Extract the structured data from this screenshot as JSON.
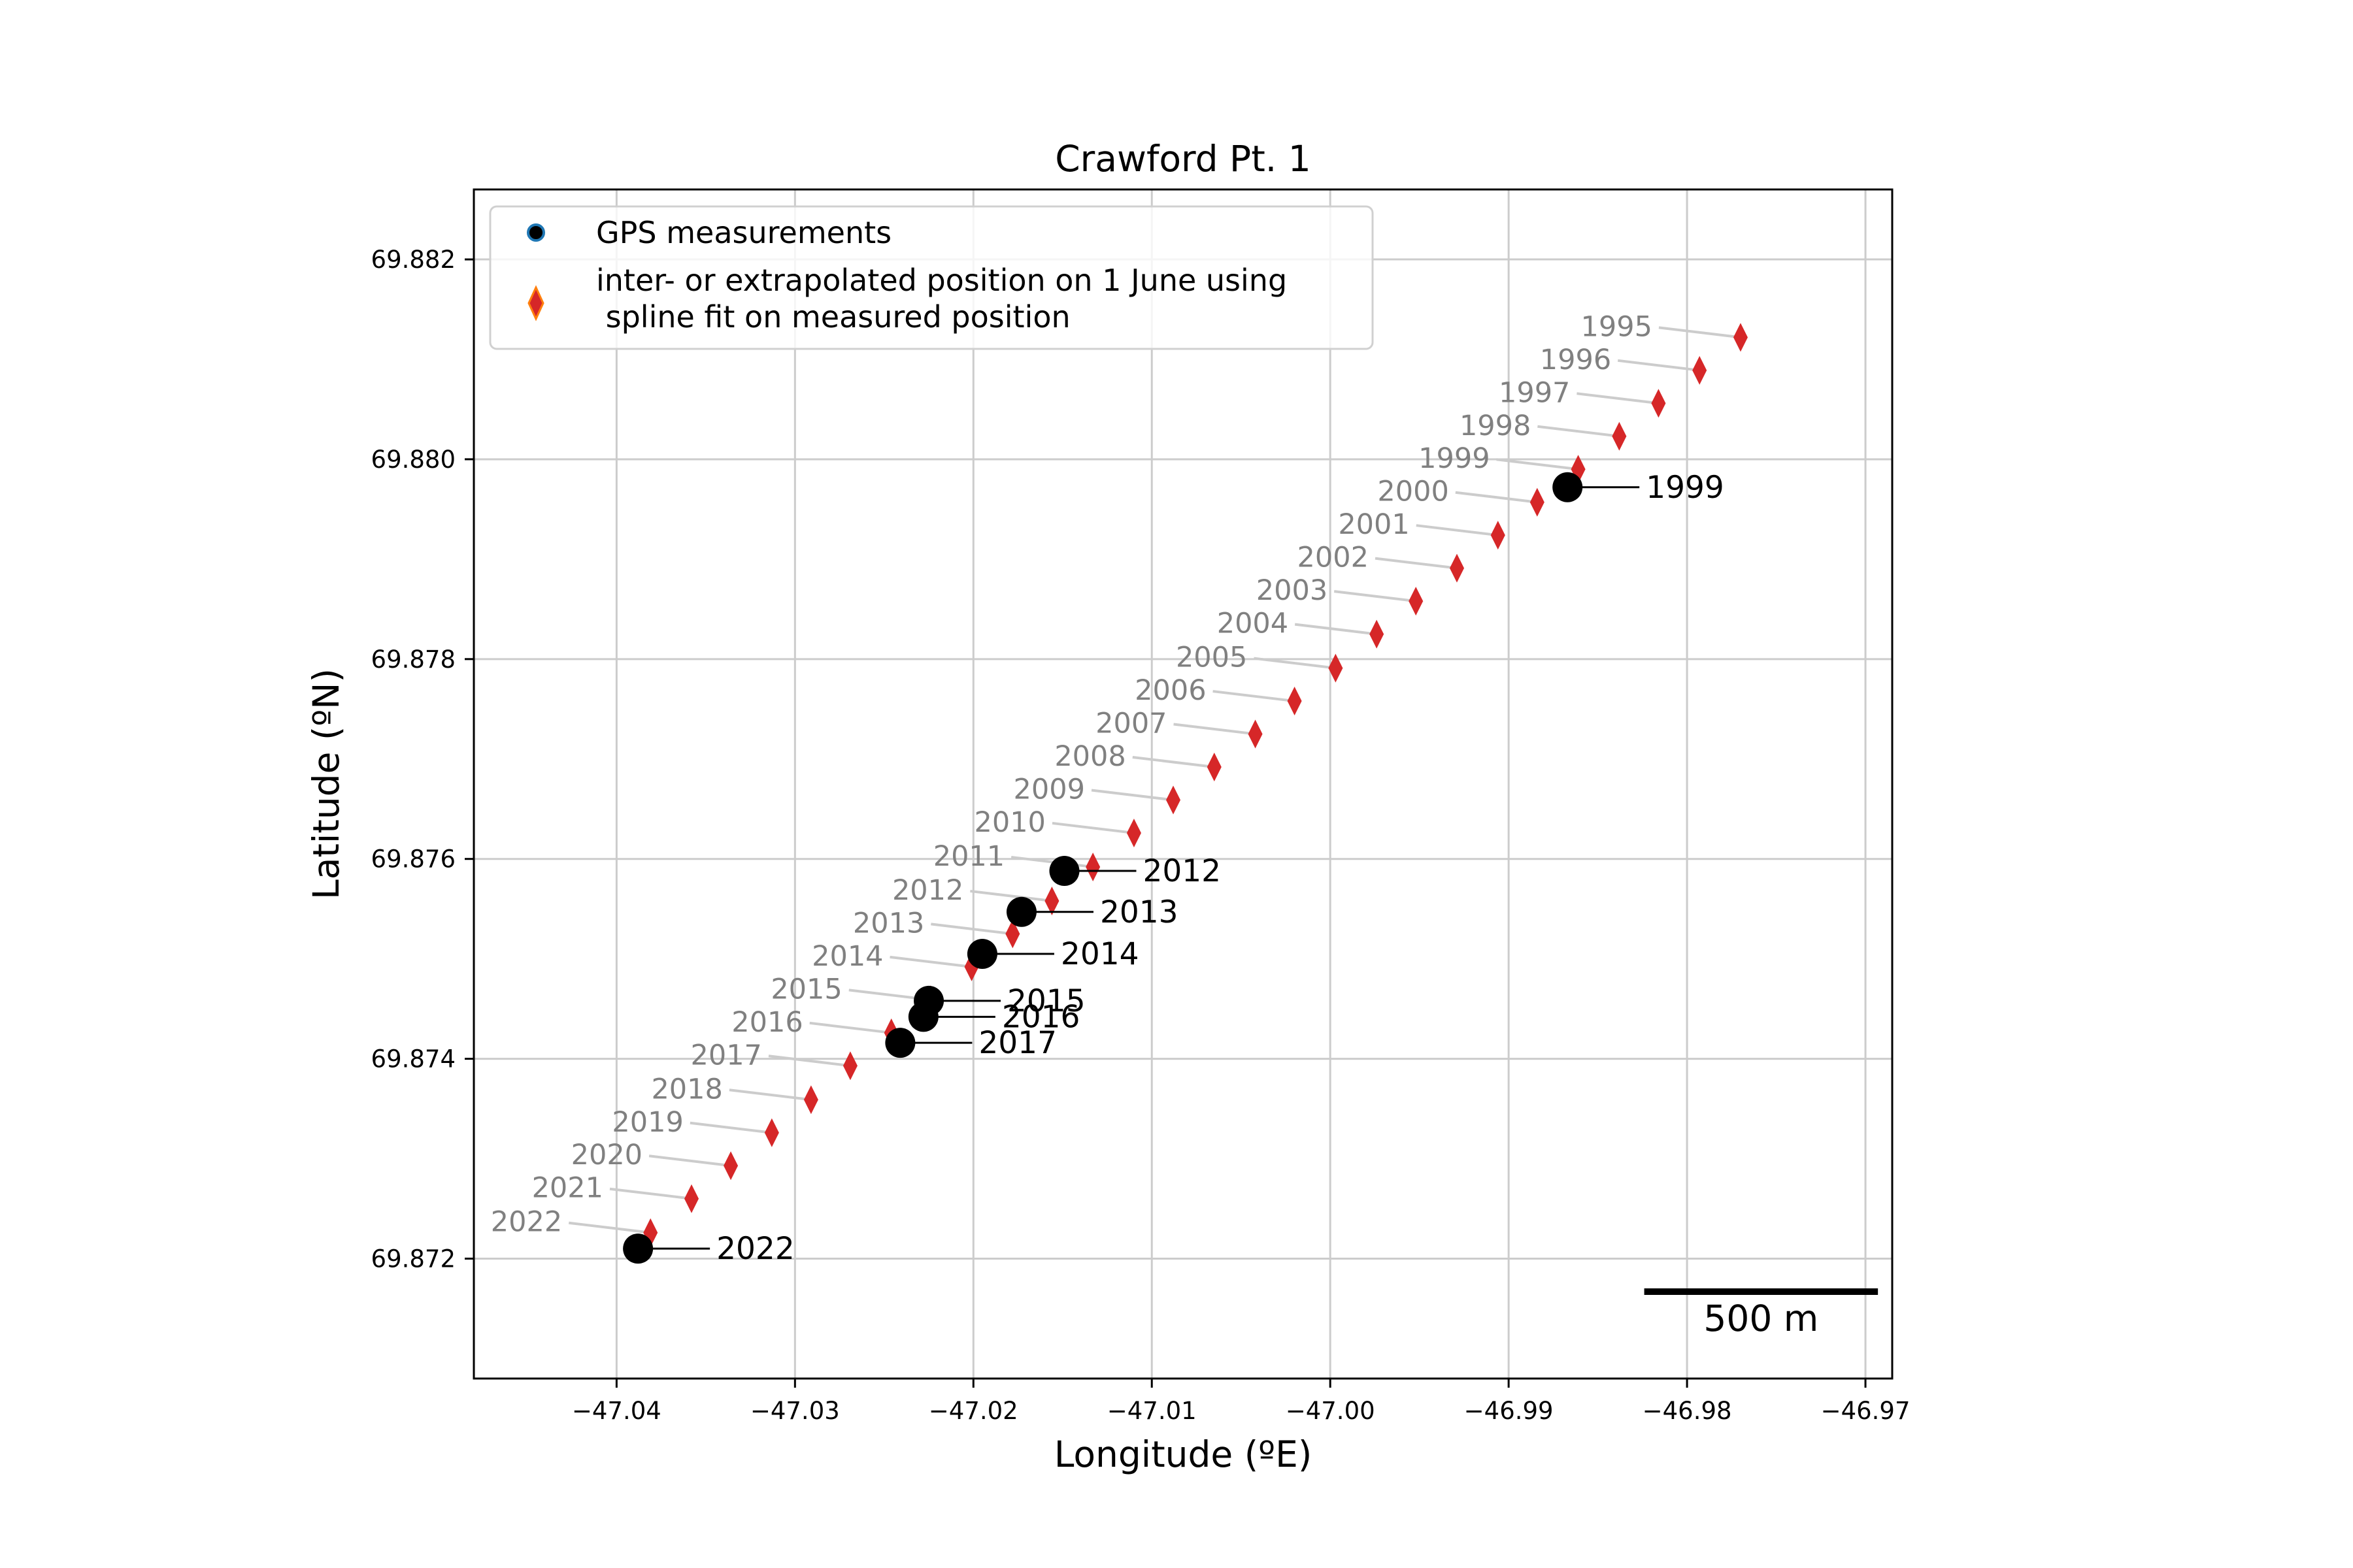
{
  "colors": {
    "gps": "#000000",
    "gps_legend_edge": "#1f77b4",
    "interp": "#d62728",
    "interp_legend_edge": "#ff7f0e",
    "interp_label": "#808080",
    "grid": "#cccccc",
    "leader_interp": "#cccccc",
    "leader_gps": "#000000"
  },
  "chart_data": {
    "type": "scatter",
    "title": "Crawford Pt. 1",
    "xlabel": "Longitude (ºE)",
    "ylabel": "Latitude (ºN)",
    "xlim": [
      -47.048,
      -46.9685
    ],
    "ylim": [
      69.8708,
      69.8827
    ],
    "grid": true,
    "legend_position": "top-left",
    "xticks": [
      -47.04,
      -47.03,
      -47.02,
      -47.01,
      -47.0,
      -46.99,
      -46.98,
      -46.97
    ],
    "xtick_labels": [
      "−47.04",
      "−47.03",
      "−47.02",
      "−47.01",
      "−47.00",
      "−46.99",
      "−46.98",
      "−46.97"
    ],
    "yticks": [
      69.872,
      69.874,
      69.876,
      69.878,
      69.88,
      69.882
    ],
    "ytick_labels": [
      "69.872",
      "69.874",
      "69.876",
      "69.878",
      "69.880",
      "69.882"
    ],
    "series": [
      {
        "name": "GPS measurements",
        "marker": "circle",
        "points": [
          {
            "label": "1999",
            "x": -46.9867,
            "y": 69.87972
          },
          {
            "label": "2012",
            "x": -47.0149,
            "y": 69.87588
          },
          {
            "label": "2013",
            "x": -47.0173,
            "y": 69.87547
          },
          {
            "label": "2014",
            "x": -47.0195,
            "y": 69.87505
          },
          {
            "label": "2015",
            "x": -47.0225,
            "y": 69.87458
          },
          {
            "label": "2016",
            "x": -47.0228,
            "y": 69.87442
          },
          {
            "label": "2017",
            "x": -47.0241,
            "y": 69.87416
          },
          {
            "label": "2022",
            "x": -47.0388,
            "y": 69.8721
          }
        ]
      },
      {
        "name": "inter- or extrapolated position on 1 June using\n spline fit on measured position",
        "marker": "diamond",
        "points": [
          {
            "label": "1995",
            "x": -46.977,
            "y": 69.88122
          },
          {
            "label": "1996",
            "x": -46.9793,
            "y": 69.88089
          },
          {
            "label": "1997",
            "x": -46.9816,
            "y": 69.88056
          },
          {
            "label": "1998",
            "x": -46.9838,
            "y": 69.88023
          },
          {
            "label": "1999",
            "x": -46.9861,
            "y": 69.8799
          },
          {
            "label": "2000",
            "x": -46.9884,
            "y": 69.87957
          },
          {
            "label": "2001",
            "x": -46.9906,
            "y": 69.87924
          },
          {
            "label": "2002",
            "x": -46.9929,
            "y": 69.87891
          },
          {
            "label": "2003",
            "x": -46.9952,
            "y": 69.87858
          },
          {
            "label": "2004",
            "x": -46.9974,
            "y": 69.87825
          },
          {
            "label": "2005",
            "x": -46.9997,
            "y": 69.87791
          },
          {
            "label": "2006",
            "x": -47.002,
            "y": 69.87758
          },
          {
            "label": "2007",
            "x": -47.0042,
            "y": 69.87725
          },
          {
            "label": "2008",
            "x": -47.0065,
            "y": 69.87692
          },
          {
            "label": "2009",
            "x": -47.0088,
            "y": 69.87659
          },
          {
            "label": "2010",
            "x": -47.011,
            "y": 69.87626
          },
          {
            "label": "2011",
            "x": -47.0133,
            "y": 69.87592
          },
          {
            "label": "2012",
            "x": -47.0156,
            "y": 69.87558
          },
          {
            "label": "2013",
            "x": -47.0178,
            "y": 69.87525
          },
          {
            "label": "2014",
            "x": -47.0201,
            "y": 69.87492
          },
          {
            "label": "2015",
            "x": -47.0224,
            "y": 69.87459
          },
          {
            "label": "2016",
            "x": -47.0246,
            "y": 69.87426
          },
          {
            "label": "2017",
            "x": -47.0269,
            "y": 69.87393
          },
          {
            "label": "2018",
            "x": -47.0291,
            "y": 69.87359
          },
          {
            "label": "2019",
            "x": -47.0313,
            "y": 69.87326
          },
          {
            "label": "2020",
            "x": -47.0336,
            "y": 69.87293
          },
          {
            "label": "2021",
            "x": -47.0358,
            "y": 69.8726
          },
          {
            "label": "2022",
            "x": -47.0381,
            "y": 69.87226
          }
        ]
      }
    ],
    "scale_bar": {
      "label": "500 m",
      "x_start": -46.9824,
      "x_end": -46.9693,
      "y": 69.87167
    }
  }
}
